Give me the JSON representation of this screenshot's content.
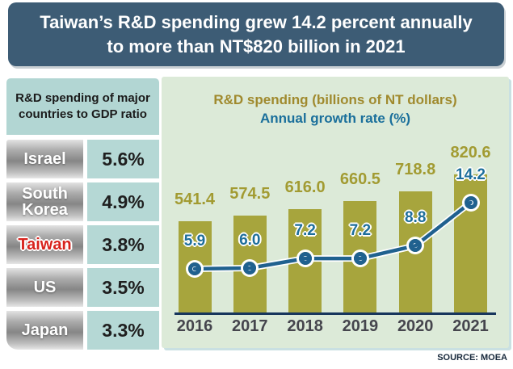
{
  "title": {
    "line1": "Taiwan’s R&D spending grew 14.2 percent annually",
    "line2": "to more than NT$820 billion in 2021"
  },
  "gdp_panel": {
    "heading_line1": "R&D spending of major",
    "heading_line2": "countries to GDP ratio",
    "rows": [
      {
        "country": "Israel",
        "value": "5.6%",
        "highlight": false
      },
      {
        "country": "South Korea",
        "value": "4.9%",
        "highlight": false
      },
      {
        "country": "Taiwan",
        "value": "3.8%",
        "highlight": true
      },
      {
        "country": "US",
        "value": "3.5%",
        "highlight": false
      },
      {
        "country": "Japan",
        "value": "3.3%",
        "highlight": false
      }
    ]
  },
  "chart": {
    "title_line1": "R&D spending (billions of NT dollars)",
    "title_line2": "Annual growth rate (%)"
  },
  "chart_data": {
    "type": "bar",
    "categories": [
      "2016",
      "2017",
      "2018",
      "2019",
      "2020",
      "2021"
    ],
    "series": [
      {
        "name": "R&D spending (billions of NT dollars)",
        "type": "bar",
        "values": [
          541.4,
          574.5,
          616.0,
          660.5,
          718.8,
          820.6
        ],
        "color": "#a7a53d",
        "label_color": "#a29b32"
      },
      {
        "name": "Annual growth rate (%)",
        "type": "line",
        "values": [
          5.9,
          6.0,
          7.2,
          7.2,
          8.8,
          14.2
        ],
        "color": "#20618f",
        "label_color": "#1e6e9b"
      }
    ],
    "title": "Taiwan’s R&D spending grew 14.2 percent annually to more than NT$820 billion in 2021",
    "xlabel": "",
    "ylabel": "",
    "bar_ylim": [
      0,
      870
    ],
    "line_ylim": [
      0,
      16
    ],
    "grid": false,
    "legend_position": "top-as-titles",
    "value_labels_shown": true
  },
  "source": "SOURCE: MOEA",
  "colors": {
    "banner_bg": "#3d5c75",
    "panel_teal": "#b2d6d3",
    "cell_teal": "#b5d8d5",
    "chart_bg": "#dcead8",
    "bar_olive": "#a7a53d",
    "line_blue": "#20618f",
    "taiwan_red": "#d8231d",
    "axis_navy": "#17365c"
  }
}
